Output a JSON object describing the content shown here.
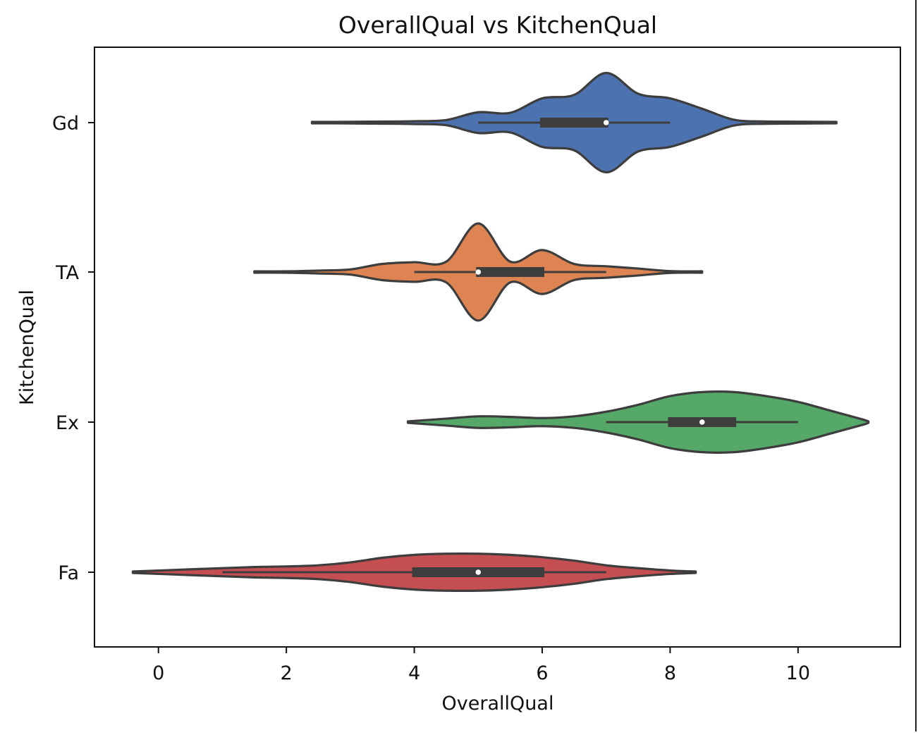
{
  "chart_data": {
    "type": "violin",
    "orientation": "horizontal",
    "title": "OverallQual vs KitchenQual",
    "xlabel": "OverallQual",
    "ylabel": "KitchenQual",
    "xlim": [
      -1,
      11.6
    ],
    "xticks": [
      0,
      2,
      4,
      6,
      8,
      10
    ],
    "categories": [
      "Gd",
      "TA",
      "Ex",
      "Fa"
    ],
    "grid": false,
    "series": [
      {
        "category": "Gd",
        "color": "#4c72b0",
        "range": [
          2.4,
          10.6
        ],
        "quartiles": [
          6,
          7,
          7
        ],
        "median": 7,
        "whiskers": [
          5,
          8
        ],
        "density": [
          [
            2.4,
            0.012
          ],
          [
            3.0,
            0.014
          ],
          [
            3.5,
            0.018
          ],
          [
            4.0,
            0.025
          ],
          [
            4.5,
            0.045
          ],
          [
            5.0,
            0.18
          ],
          [
            5.5,
            0.17
          ],
          [
            6.0,
            0.42
          ],
          [
            6.5,
            0.48
          ],
          [
            7.0,
            0.86
          ],
          [
            7.5,
            0.5
          ],
          [
            8.0,
            0.42
          ],
          [
            8.5,
            0.24
          ],
          [
            9.0,
            0.05
          ],
          [
            9.5,
            0.02
          ],
          [
            10.0,
            0.016
          ],
          [
            10.6,
            0.012
          ]
        ]
      },
      {
        "category": "TA",
        "color": "#dd8452",
        "range": [
          1.5,
          8.5
        ],
        "quartiles": [
          5,
          5,
          6
        ],
        "median": 5,
        "whiskers": [
          4,
          7
        ],
        "density": [
          [
            1.5,
            0.012
          ],
          [
            2.0,
            0.012
          ],
          [
            2.5,
            0.025
          ],
          [
            3.0,
            0.045
          ],
          [
            3.5,
            0.14
          ],
          [
            4.0,
            0.17
          ],
          [
            4.5,
            0.18
          ],
          [
            5.0,
            0.84
          ],
          [
            5.5,
            0.18
          ],
          [
            6.0,
            0.38
          ],
          [
            6.5,
            0.14
          ],
          [
            7.0,
            0.1
          ],
          [
            7.5,
            0.06
          ],
          [
            8.0,
            0.015
          ],
          [
            8.5,
            0.012
          ]
        ]
      },
      {
        "category": "Ex",
        "color": "#55a868",
        "range": [
          3.9,
          11.1
        ],
        "quartiles": [
          8,
          8.5,
          9
        ],
        "median": 8.5,
        "whiskers": [
          7,
          10
        ],
        "density": [
          [
            3.9,
            0.012
          ],
          [
            4.5,
            0.06
          ],
          [
            5.0,
            0.1
          ],
          [
            5.5,
            0.09
          ],
          [
            6.0,
            0.07
          ],
          [
            6.5,
            0.1
          ],
          [
            7.0,
            0.18
          ],
          [
            7.5,
            0.3
          ],
          [
            8.0,
            0.45
          ],
          [
            8.5,
            0.52
          ],
          [
            9.0,
            0.52
          ],
          [
            9.5,
            0.45
          ],
          [
            10.0,
            0.35
          ],
          [
            10.5,
            0.2
          ],
          [
            11.0,
            0.05
          ],
          [
            11.1,
            0.012
          ]
        ]
      },
      {
        "category": "Fa",
        "color": "#c44e52",
        "range": [
          -0.4,
          8.4
        ],
        "quartiles": [
          4,
          5,
          6
        ],
        "median": 5,
        "whiskers": [
          1,
          7
        ],
        "density": [
          [
            -0.4,
            0.012
          ],
          [
            0.5,
            0.05
          ],
          [
            1.0,
            0.07
          ],
          [
            1.5,
            0.09
          ],
          [
            2.0,
            0.1
          ],
          [
            2.5,
            0.12
          ],
          [
            3.0,
            0.17
          ],
          [
            3.5,
            0.25
          ],
          [
            4.0,
            0.3
          ],
          [
            4.5,
            0.32
          ],
          [
            5.0,
            0.32
          ],
          [
            5.5,
            0.3
          ],
          [
            6.0,
            0.26
          ],
          [
            6.5,
            0.2
          ],
          [
            7.0,
            0.12
          ],
          [
            7.5,
            0.07
          ],
          [
            8.0,
            0.03
          ],
          [
            8.4,
            0.012
          ]
        ]
      }
    ]
  }
}
